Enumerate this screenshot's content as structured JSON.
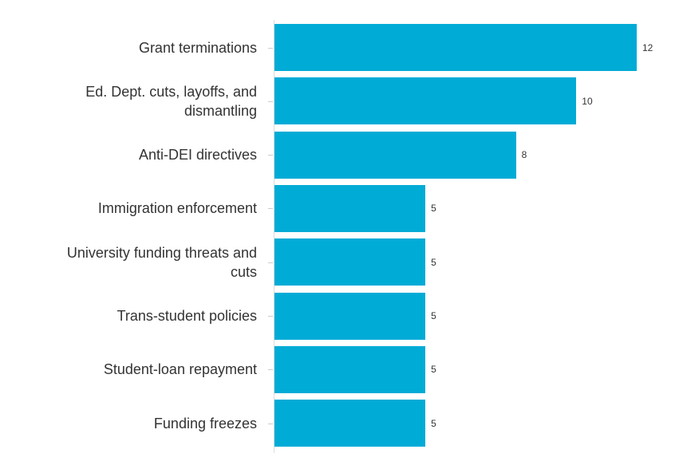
{
  "chart_data": {
    "type": "bar",
    "orientation": "horizontal",
    "title": "",
    "xlabel": "",
    "ylabel": "",
    "categories": [
      "Grant terminations",
      "Ed. Dept. cuts, layoffs, and dismantling",
      "Anti-DEI directives",
      "Immigration enforcement",
      "University funding threats and cuts",
      "Trans-student policies",
      "Student-loan repayment",
      "Funding freezes"
    ],
    "values": [
      12,
      10,
      8,
      5,
      5,
      5,
      5,
      5
    ],
    "value_labels": [
      "12",
      "10",
      "8",
      "5",
      "5",
      "5",
      "5",
      "5"
    ],
    "xlim": [
      0,
      13.5
    ],
    "grid": false,
    "legend": false,
    "colors": {
      "bar": "#00abd6",
      "category_label": "#333333",
      "value_label": "#333333",
      "axis_line": "#dcdcdc",
      "tick": "#cccccc",
      "background": "#ffffff"
    }
  }
}
